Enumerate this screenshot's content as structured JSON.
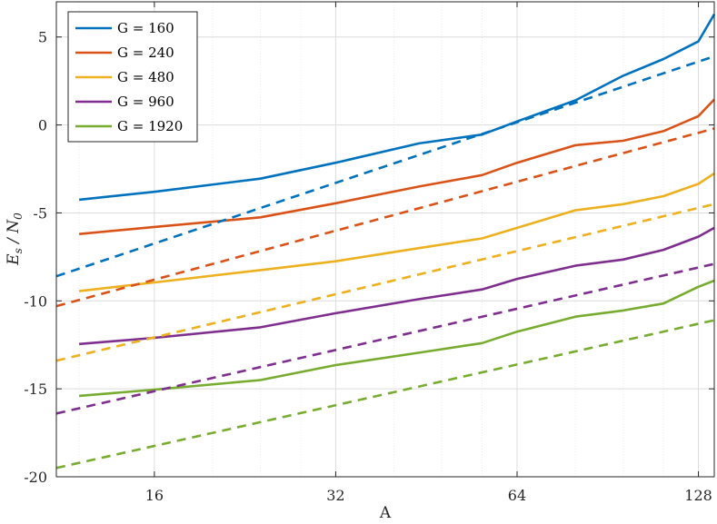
{
  "chart_data": {
    "type": "line",
    "title": "",
    "xlabel": "A",
    "ylabel": "E_s / N_0",
    "xscale": "log2",
    "xlim": [
      11,
      136
    ],
    "ylim": [
      -20,
      7
    ],
    "xticks": [
      {
        "value": 16,
        "label": "16"
      },
      {
        "value": 32,
        "label": "32"
      },
      {
        "value": 64,
        "label": "64"
      },
      {
        "value": 128,
        "label": "128"
      }
    ],
    "yticks": [
      {
        "value": 5,
        "label": "5"
      },
      {
        "value": 0,
        "label": "0"
      },
      {
        "value": -5,
        "label": "-5"
      },
      {
        "value": -10,
        "label": "-10"
      },
      {
        "value": -15,
        "label": "-15"
      },
      {
        "value": -20,
        "label": "-20"
      }
    ],
    "grid": true,
    "legend_position": "top-left",
    "series": [
      {
        "name": "G = 160",
        "color": "#0072BD",
        "style": "solid",
        "x": [
          12,
          16,
          24,
          32,
          44,
          56,
          64,
          80,
          96,
          112,
          128,
          136
        ],
        "y": [
          -4.25,
          -3.8,
          -3.05,
          -2.15,
          -1.05,
          -0.55,
          0.2,
          1.4,
          2.8,
          3.75,
          4.75,
          6.3
        ]
      },
      {
        "name": "G = 240",
        "color": "#D95319",
        "style": "solid",
        "x": [
          12,
          16,
          24,
          32,
          44,
          56,
          64,
          80,
          96,
          112,
          128,
          136
        ],
        "y": [
          -6.2,
          -5.8,
          -5.25,
          -4.45,
          -3.5,
          -2.85,
          -2.15,
          -1.15,
          -0.9,
          -0.35,
          0.5,
          1.45
        ]
      },
      {
        "name": "G = 480",
        "color": "#EDB120",
        "style": "solid",
        "x": [
          12,
          16,
          24,
          32,
          44,
          56,
          64,
          80,
          96,
          112,
          128,
          136
        ],
        "y": [
          -9.45,
          -8.95,
          -8.25,
          -7.75,
          -7.0,
          -6.45,
          -5.85,
          -4.85,
          -4.5,
          -4.05,
          -3.35,
          -2.75
        ]
      },
      {
        "name": "G = 960",
        "color": "#7E2F8E",
        "style": "solid",
        "x": [
          12,
          16,
          24,
          32,
          44,
          56,
          64,
          80,
          96,
          112,
          128,
          136
        ],
        "y": [
          -12.45,
          -12.1,
          -11.5,
          -10.7,
          -9.9,
          -9.35,
          -8.75,
          -8.0,
          -7.65,
          -7.1,
          -6.35,
          -5.85
        ]
      },
      {
        "name": "G = 1920",
        "color": "#77AC30",
        "style": "solid",
        "x": [
          12,
          16,
          24,
          32,
          44,
          56,
          64,
          80,
          96,
          112,
          128,
          136
        ],
        "y": [
          -15.4,
          -15.05,
          -14.5,
          -13.65,
          -12.95,
          -12.4,
          -11.75,
          -10.9,
          -10.55,
          -10.15,
          -9.2,
          -8.85
        ]
      },
      {
        "color": "#0072BD",
        "style": "dashed",
        "x": [
          11,
          136
        ],
        "y": [
          -8.6,
          3.9
        ]
      },
      {
        "color": "#D95319",
        "style": "dashed",
        "x": [
          11,
          136
        ],
        "y": [
          -10.3,
          -0.2
        ]
      },
      {
        "color": "#EDB120",
        "style": "dashed",
        "x": [
          11,
          136
        ],
        "y": [
          -13.4,
          -4.5
        ]
      },
      {
        "color": "#7E2F8E",
        "style": "dashed",
        "x": [
          11,
          136
        ],
        "y": [
          -16.4,
          -7.9
        ]
      },
      {
        "color": "#77AC30",
        "style": "dashed",
        "x": [
          11,
          136
        ],
        "y": [
          -19.5,
          -11.1
        ]
      }
    ]
  }
}
